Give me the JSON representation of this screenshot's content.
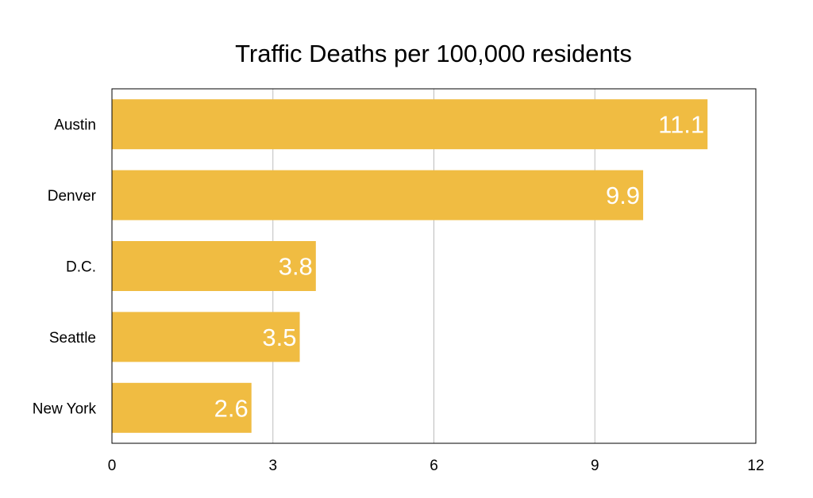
{
  "chart_data": {
    "type": "bar",
    "orientation": "horizontal",
    "title": "Traffic Deaths per 100,000 residents",
    "xlabel": "",
    "ylabel": "",
    "categories": [
      "Austin",
      "Denver",
      "D.C.",
      "Seattle",
      "New York"
    ],
    "values": [
      11.1,
      9.9,
      3.8,
      3.5,
      2.6
    ],
    "data_labels": [
      "11.1",
      "9.9",
      "3.8",
      "3.5",
      "2.6"
    ],
    "xlim": [
      0,
      12
    ],
    "x_ticks": [
      0,
      3,
      6,
      9,
      12
    ],
    "x_tick_labels": [
      "0",
      "3",
      "6",
      "9",
      "12"
    ],
    "grid": true,
    "legend": "none",
    "bar_color": "#F0BC42",
    "data_label_color": "#FFFFFF",
    "grid_color": "#BDBDBD",
    "axis_color": "#000000"
  }
}
